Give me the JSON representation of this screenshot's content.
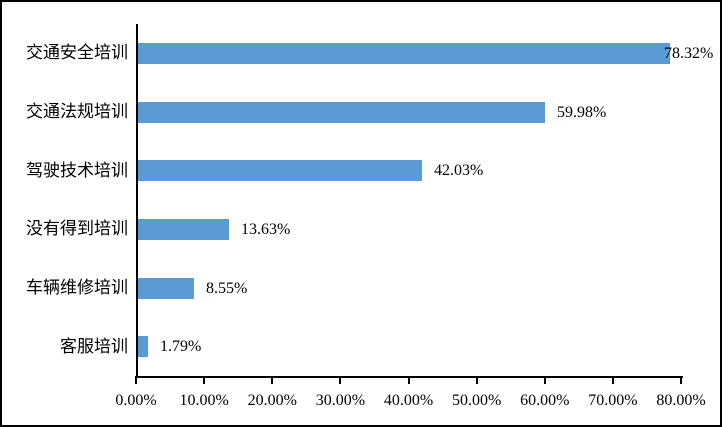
{
  "chart_data": {
    "type": "bar",
    "orientation": "horizontal",
    "title": "",
    "categories": [
      "交通安全培训",
      "交通法规培训",
      "驾驶技术培训",
      "没有得到培训",
      "车辆维修培训",
      "客服培训"
    ],
    "values": [
      78.32,
      59.98,
      42.03,
      13.63,
      8.55,
      1.79
    ],
    "value_labels": [
      "78.32%",
      "59.98%",
      "42.03%",
      "13.63%",
      "8.55%",
      "1.79%"
    ],
    "x_tick_labels": [
      "0.00%",
      "10.00%",
      "20.00%",
      "30.00%",
      "40.00%",
      "50.00%",
      "60.00%",
      "70.00%",
      "80.00%"
    ],
    "xlim": [
      0,
      80
    ],
    "grid": false,
    "legend": "none",
    "bar_color": "#5b9bd5",
    "axis_color": "#000000",
    "text_color": "#000000",
    "background_color": "#ffffff",
    "border_color": "#000000"
  }
}
